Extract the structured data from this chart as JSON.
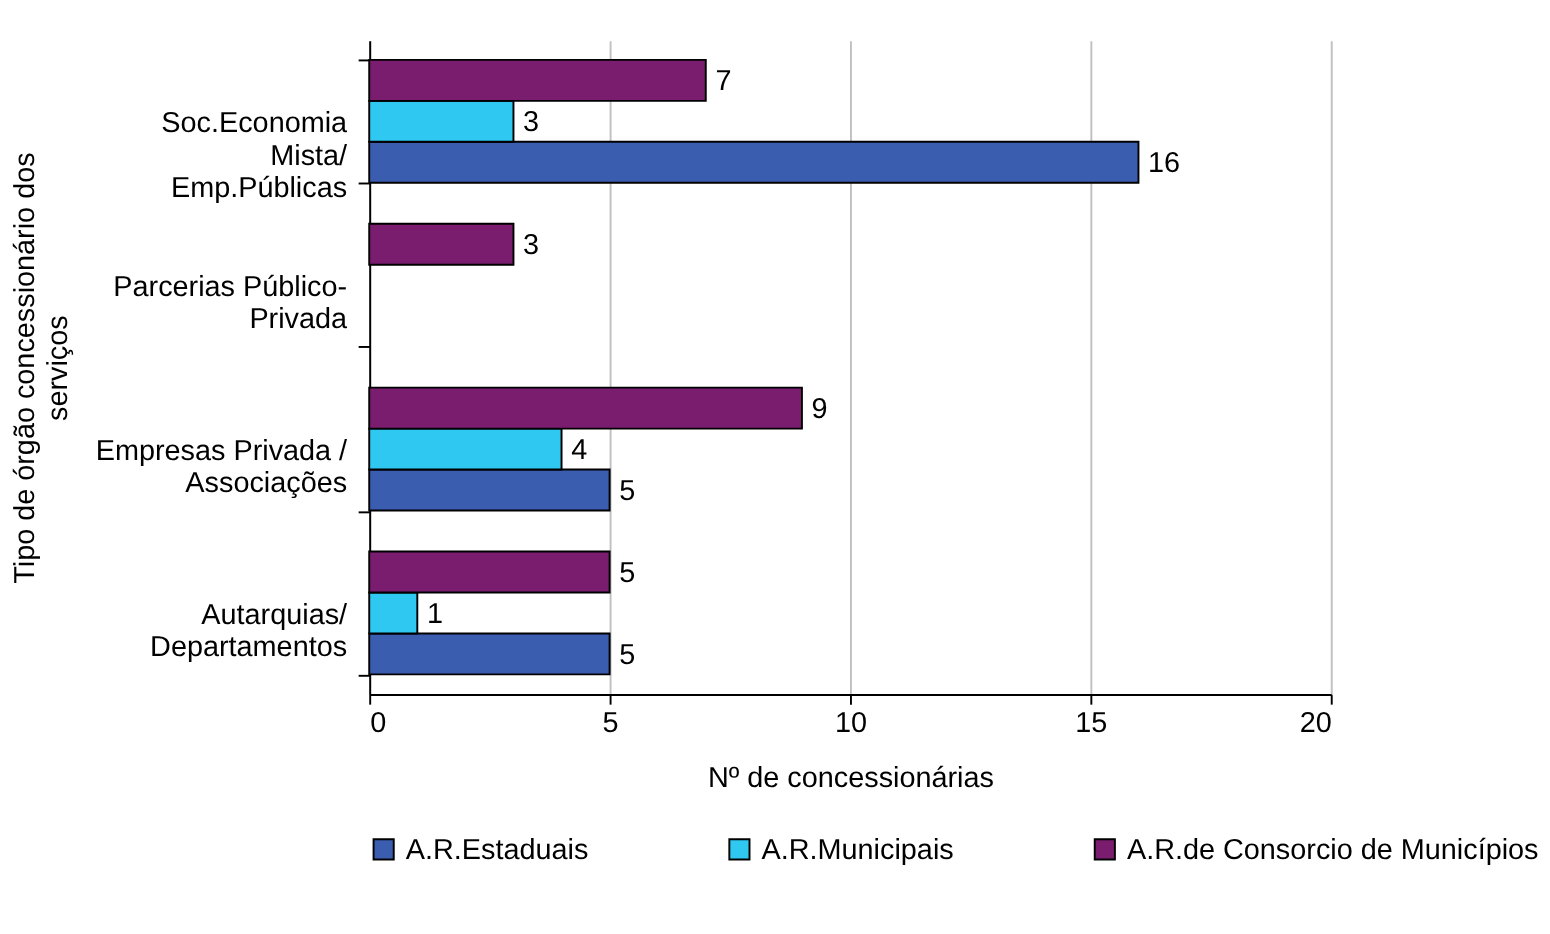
{
  "chart_data": {
    "type": "bar",
    "orientation": "horizontal",
    "xlabel": "Nº de concessionárias",
    "ylabel": "Tipo de órgão concessionário dos\nserviços",
    "categories": [
      "Soc.Economia\nMista/\nEmp.Públicas",
      "Parcerias Público-\nPrivada",
      "Empresas Privada /\nAssociações",
      "Autarquias/\nDepartamentos"
    ],
    "series": [
      {
        "name": "A.R.Estaduais",
        "color": "#3a5db0",
        "values": [
          16,
          null,
          5,
          5
        ]
      },
      {
        "name": "A.R.Municipais",
        "color": "#2ec8f0",
        "values": [
          3,
          null,
          4,
          1
        ]
      },
      {
        "name": "A.R.de Consorcio de Municípios",
        "color": "#7b1d6f",
        "values": [
          7,
          3,
          9,
          5
        ]
      }
    ],
    "xlim": [
      0,
      20
    ],
    "xticks": [
      0,
      5,
      10,
      15,
      20
    ],
    "grid": "x",
    "legend": "bottom",
    "data_labels": true
  }
}
